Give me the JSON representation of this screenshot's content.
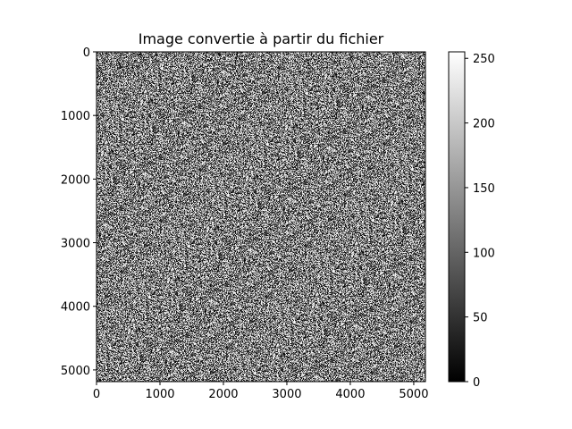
{
  "chart_data": {
    "type": "heatmap",
    "title": "Image convertie à partir du fichier",
    "colormap": "gray",
    "description_values": "uniform random grayscale noise, each pixel value in [0, 255]",
    "xlim": [
      0,
      5184
    ],
    "ylim": [
      5184,
      0
    ],
    "x_ticks": [
      0,
      1000,
      2000,
      3000,
      4000,
      5000
    ],
    "y_ticks": [
      0,
      1000,
      2000,
      3000,
      4000,
      5000
    ],
    "colorbar": {
      "range": [
        0,
        255
      ],
      "ticks": [
        0,
        50,
        100,
        150,
        200,
        250
      ]
    }
  }
}
